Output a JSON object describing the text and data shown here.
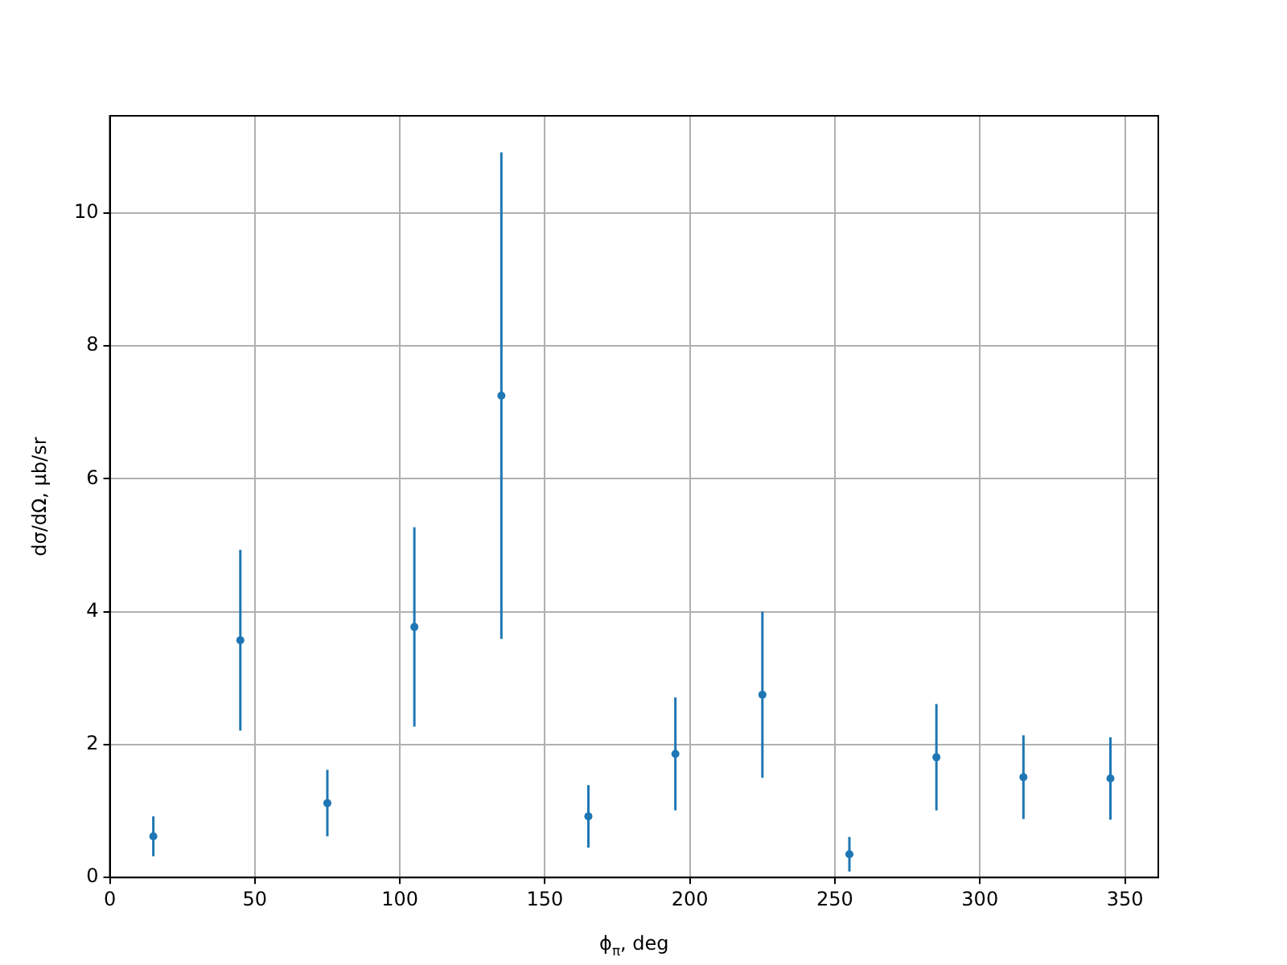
{
  "chart_data": {
    "type": "scatter",
    "xlabel": "ϕ$_{π}$, deg",
    "ylabel": "dσ/dΩ, μb/sr",
    "x": [
      15,
      45,
      75,
      105,
      135,
      165,
      195,
      225,
      255,
      285,
      315,
      345
    ],
    "series": [
      {
        "color": "#1f77b4",
        "values": [
          0.62,
          3.57,
          1.12,
          3.77,
          7.25,
          0.92,
          1.86,
          2.75,
          0.35,
          1.81,
          1.51,
          1.49
        ],
        "errors": [
          0.3,
          1.36,
          0.5,
          1.5,
          3.66,
          0.47,
          0.85,
          1.25,
          0.26,
          0.8,
          0.63,
          0.62
        ]
      }
    ],
    "xlim": [
      0,
      361.5
    ],
    "xticks": [
      0,
      50,
      100,
      150,
      200,
      250,
      300,
      350
    ],
    "ylim": [
      0,
      11.46
    ],
    "yticks": [
      0,
      2,
      4,
      6,
      8,
      10
    ],
    "grid": true,
    "marker": "circle",
    "legend": false
  }
}
